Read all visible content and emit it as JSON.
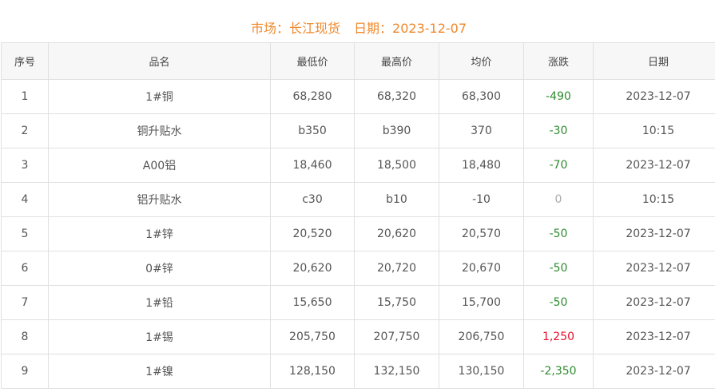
{
  "header": {
    "market_label": "市场：长江现货",
    "date_label": "日期：2023-12-07"
  },
  "columns": [
    "序号",
    "品名",
    "最低价",
    "最高价",
    "均价",
    "涨跌",
    "日期"
  ],
  "colors": {
    "up": "#e8112d",
    "down": "#2e8b2e",
    "flat": "#aaaaaa",
    "title": "#f0892d"
  },
  "rows": [
    {
      "no": "1",
      "name": "1#铜",
      "low": "68,280",
      "high": "68,320",
      "avg": "68,300",
      "change": "-490",
      "dir": "down",
      "date": "2023-12-07"
    },
    {
      "no": "2",
      "name": "铜升贴水",
      "low": "b350",
      "high": "b390",
      "avg": "370",
      "change": "-30",
      "dir": "down",
      "date": "10:15"
    },
    {
      "no": "3",
      "name": "A00铝",
      "low": "18,460",
      "high": "18,500",
      "avg": "18,480",
      "change": "-70",
      "dir": "down",
      "date": "2023-12-07"
    },
    {
      "no": "4",
      "name": "铝升贴水",
      "low": "c30",
      "high": "b10",
      "avg": "-10",
      "change": "0",
      "dir": "flat",
      "date": "10:15"
    },
    {
      "no": "5",
      "name": "1#锌",
      "low": "20,520",
      "high": "20,620",
      "avg": "20,570",
      "change": "-50",
      "dir": "down",
      "date": "2023-12-07"
    },
    {
      "no": "6",
      "name": "0#锌",
      "low": "20,620",
      "high": "20,720",
      "avg": "20,670",
      "change": "-50",
      "dir": "down",
      "date": "2023-12-07"
    },
    {
      "no": "7",
      "name": "1#铅",
      "low": "15,650",
      "high": "15,750",
      "avg": "15,700",
      "change": "-50",
      "dir": "down",
      "date": "2023-12-07"
    },
    {
      "no": "8",
      "name": "1#锡",
      "low": "205,750",
      "high": "207,750",
      "avg": "206,750",
      "change": "1,250",
      "dir": "up",
      "date": "2023-12-07"
    },
    {
      "no": "9",
      "name": "1#镍",
      "low": "128,150",
      "high": "132,150",
      "avg": "130,150",
      "change": "-2,350",
      "dir": "down",
      "date": "2023-12-07"
    }
  ]
}
